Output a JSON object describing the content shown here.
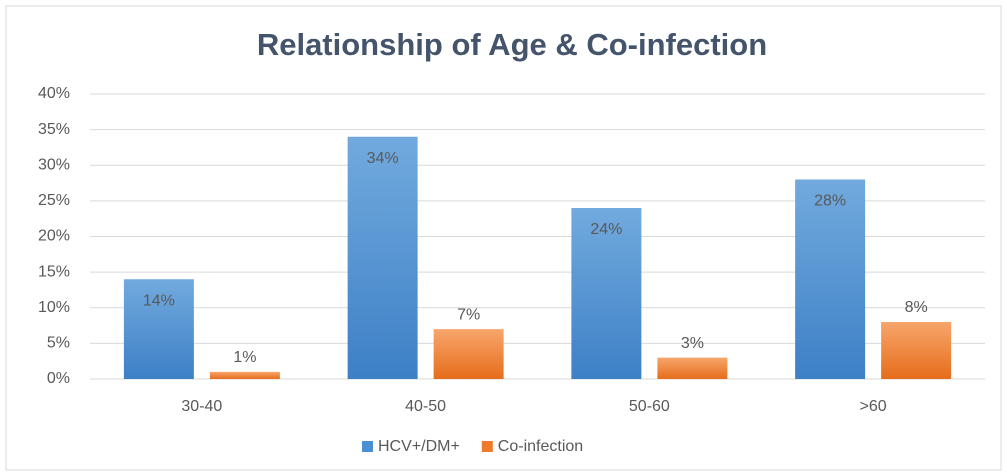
{
  "chart_data": {
    "type": "bar",
    "title": "Relationship of Age & Co-infection",
    "categories": [
      "30-40",
      "40-50",
      "50-60",
      ">60"
    ],
    "series": [
      {
        "name": "HCV+/DM+",
        "color": "#4a8fd4",
        "values": [
          14,
          34,
          24,
          28
        ],
        "value_labels": [
          "14%",
          "34%",
          "24%",
          "28%"
        ]
      },
      {
        "name": "Co-infection",
        "color": "#ee7a2c",
        "values": [
          1,
          7,
          3,
          8
        ],
        "value_labels": [
          "1%",
          "7%",
          "3%",
          "8%"
        ]
      }
    ],
    "ylim": [
      0,
      40
    ],
    "yticks": [
      {
        "value": 0,
        "label": "0%"
      },
      {
        "value": 5,
        "label": "5%"
      },
      {
        "value": 10,
        "label": "10%"
      },
      {
        "value": 15,
        "label": "15%"
      },
      {
        "value": 20,
        "label": "20%"
      },
      {
        "value": 25,
        "label": "25%"
      },
      {
        "value": 30,
        "label": "30%"
      },
      {
        "value": 35,
        "label": "35%"
      },
      {
        "value": 40,
        "label": "40%"
      }
    ],
    "grid": true,
    "legend": "bottom"
  }
}
